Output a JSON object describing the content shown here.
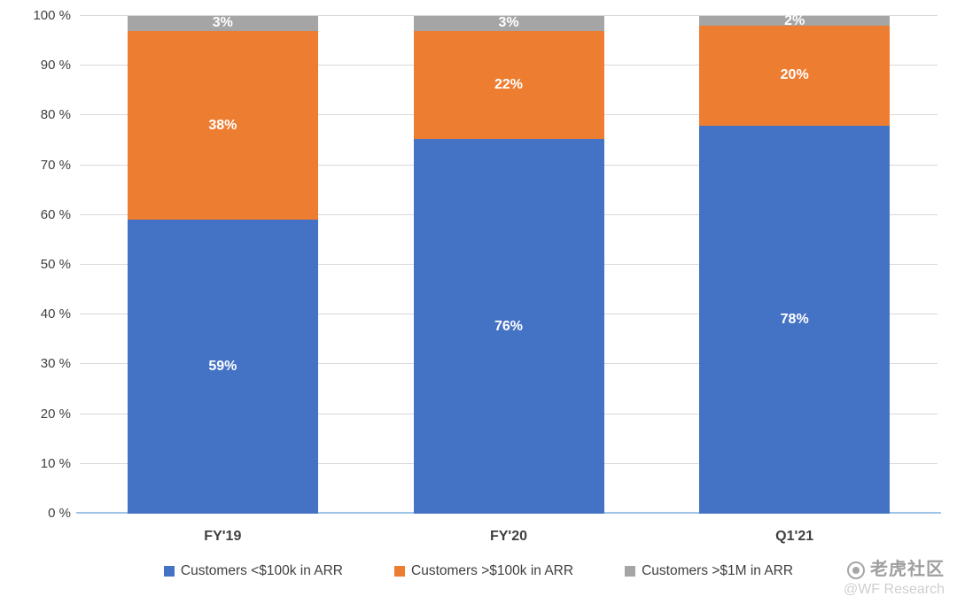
{
  "chart_data": {
    "type": "bar",
    "stacked": true,
    "percent_stacked": true,
    "title": "",
    "xlabel": "",
    "ylabel": "",
    "ylim": [
      0,
      100
    ],
    "grid": true,
    "legend_position": "bottom",
    "categories": [
      "FY'19",
      "FY'20",
      "Q1'21"
    ],
    "yticks": [
      "0 %",
      "10 %",
      "20 %",
      "30 %",
      "40 %",
      "50 %",
      "60 %",
      "70 %",
      "80 %",
      "90 %",
      "100 %"
    ],
    "series": [
      {
        "name": "Customers <$100k in ARR",
        "color": "#4472C4",
        "values": [
          59,
          76,
          78
        ],
        "labels": [
          "59%",
          "76%",
          "78%"
        ]
      },
      {
        "name": "Customers >$100k in ARR",
        "color": "#ED7D31",
        "values": [
          38,
          22,
          20
        ],
        "labels": [
          "38%",
          "22%",
          "20%"
        ]
      },
      {
        "name": "Customers >$1M in ARR",
        "color": "#A5A5A5",
        "values": [
          3,
          3,
          2
        ],
        "labels": [
          "3%",
          "3%",
          "2%"
        ]
      }
    ],
    "colors": {
      "gridline": "#d9d9d9",
      "axis_line": "#9dc3e6",
      "tick_text": "#404040",
      "data_label_text": "#ffffff"
    }
  },
  "watermark": {
    "community": "老虎社区",
    "handle": "@WF Research"
  }
}
